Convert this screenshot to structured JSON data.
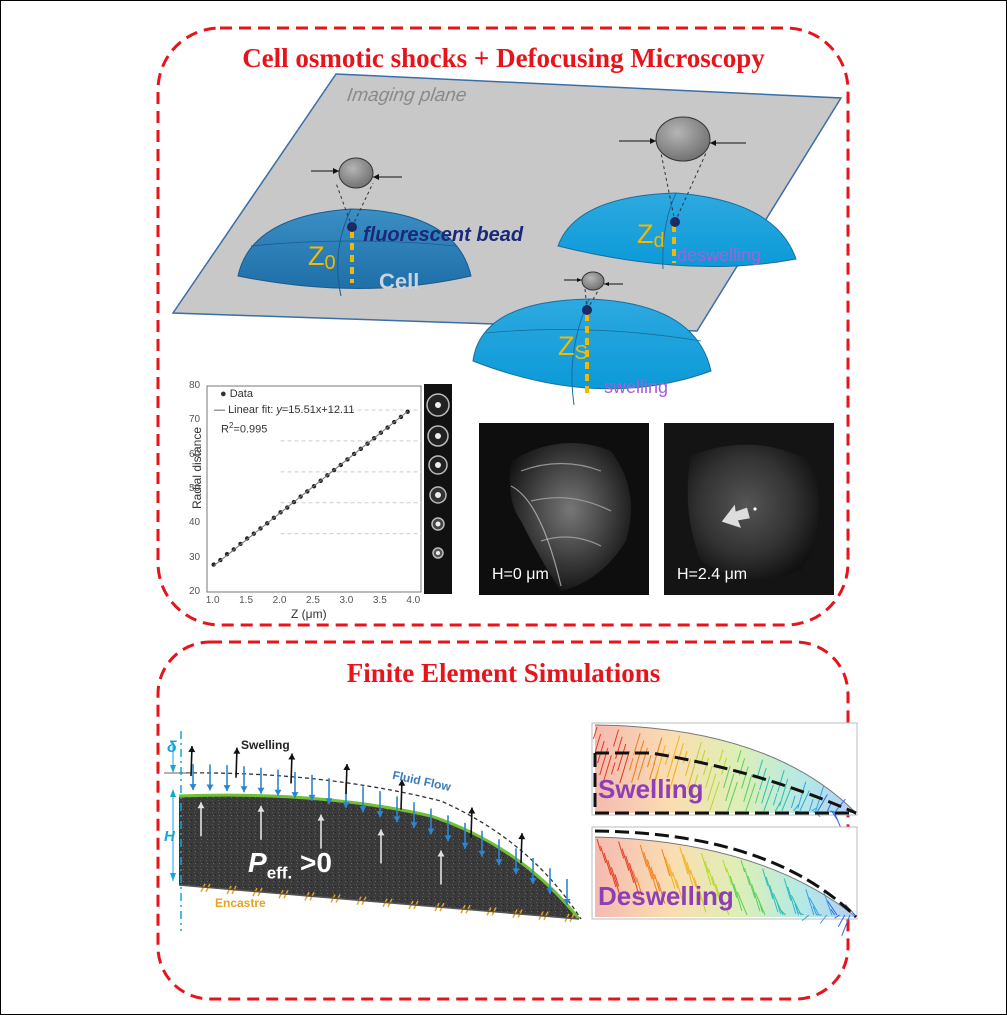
{
  "titles": {
    "top": "Cell osmotic shocks + Defocusing Microscopy",
    "bottom": "Finite Element Simulations"
  },
  "diagram": {
    "imaging_plane": "Imaging plane",
    "fluorescent_bead": "fluorescent bead",
    "cell": "Cell",
    "z0": "Z",
    "z0_sub": "0",
    "zd": "Z",
    "zd_sub": "d",
    "zs": "Z",
    "zs_sub": "S",
    "deswelling": "deswelling",
    "swelling": "swelling",
    "colors": {
      "cell": "#2aa0d8",
      "bead": "#1a2a6a",
      "plane": "#c8c8c8",
      "dash": "#f5b800",
      "title": "#e8141b"
    }
  },
  "chart_data": {
    "type": "scatter",
    "title": "",
    "xlabel": "Z (μm)",
    "ylabel": "Radial distance",
    "xlim": [
      0.9,
      4.1
    ],
    "ylim": [
      20,
      80
    ],
    "xticks": [
      "1.0",
      "1.5",
      "2.0",
      "2.5",
      "3.0",
      "3.5",
      "4.0"
    ],
    "yticks": [
      "20",
      "30",
      "40",
      "50",
      "60",
      "70",
      "80"
    ],
    "legend": {
      "data": "Data",
      "fit": "Linear fit: ",
      "fit_eq": "y",
      "fit_rest": "=15.51x+12.11",
      "r2": "R",
      "r2_sup": "2",
      "r2_val": "=0.995"
    },
    "fit": {
      "slope": 15.51,
      "intercept": 12.11
    },
    "series": [
      {
        "x": [
          1.0,
          1.1,
          1.2,
          1.3,
          1.4,
          1.5,
          1.6,
          1.7,
          1.8,
          1.9,
          2.0,
          2.1,
          2.2,
          2.3,
          2.4,
          2.5,
          2.6,
          2.7,
          2.8,
          2.9,
          3.0,
          3.1,
          3.2,
          3.3,
          3.4,
          3.5,
          3.6,
          3.7,
          3.8,
          3.9
        ],
        "y": [
          28,
          29.3,
          31,
          32.4,
          34,
          35.6,
          37,
          38.5,
          40,
          41.6,
          43.2,
          44.6,
          46.2,
          47.8,
          49.3,
          50.8,
          52.4,
          54,
          55.5,
          57,
          58.6,
          60.2,
          61.7,
          63.2,
          64.8,
          66.4,
          67.9,
          69.5,
          71,
          72.5
        ]
      }
    ]
  },
  "micrographs": {
    "left": "H=0 μm",
    "right": "H=2.4 μm"
  },
  "simulation": {
    "delta": "δ",
    "swelling": "Swelling",
    "fluid_flow": "Fluid Flow",
    "h": "H",
    "peff_p": "P",
    "peff_sub": "eff.",
    "peff_rest": " >0",
    "encastre": "Encastre",
    "panel_swelling": "Swelling",
    "panel_deswelling": "Deswelling"
  }
}
